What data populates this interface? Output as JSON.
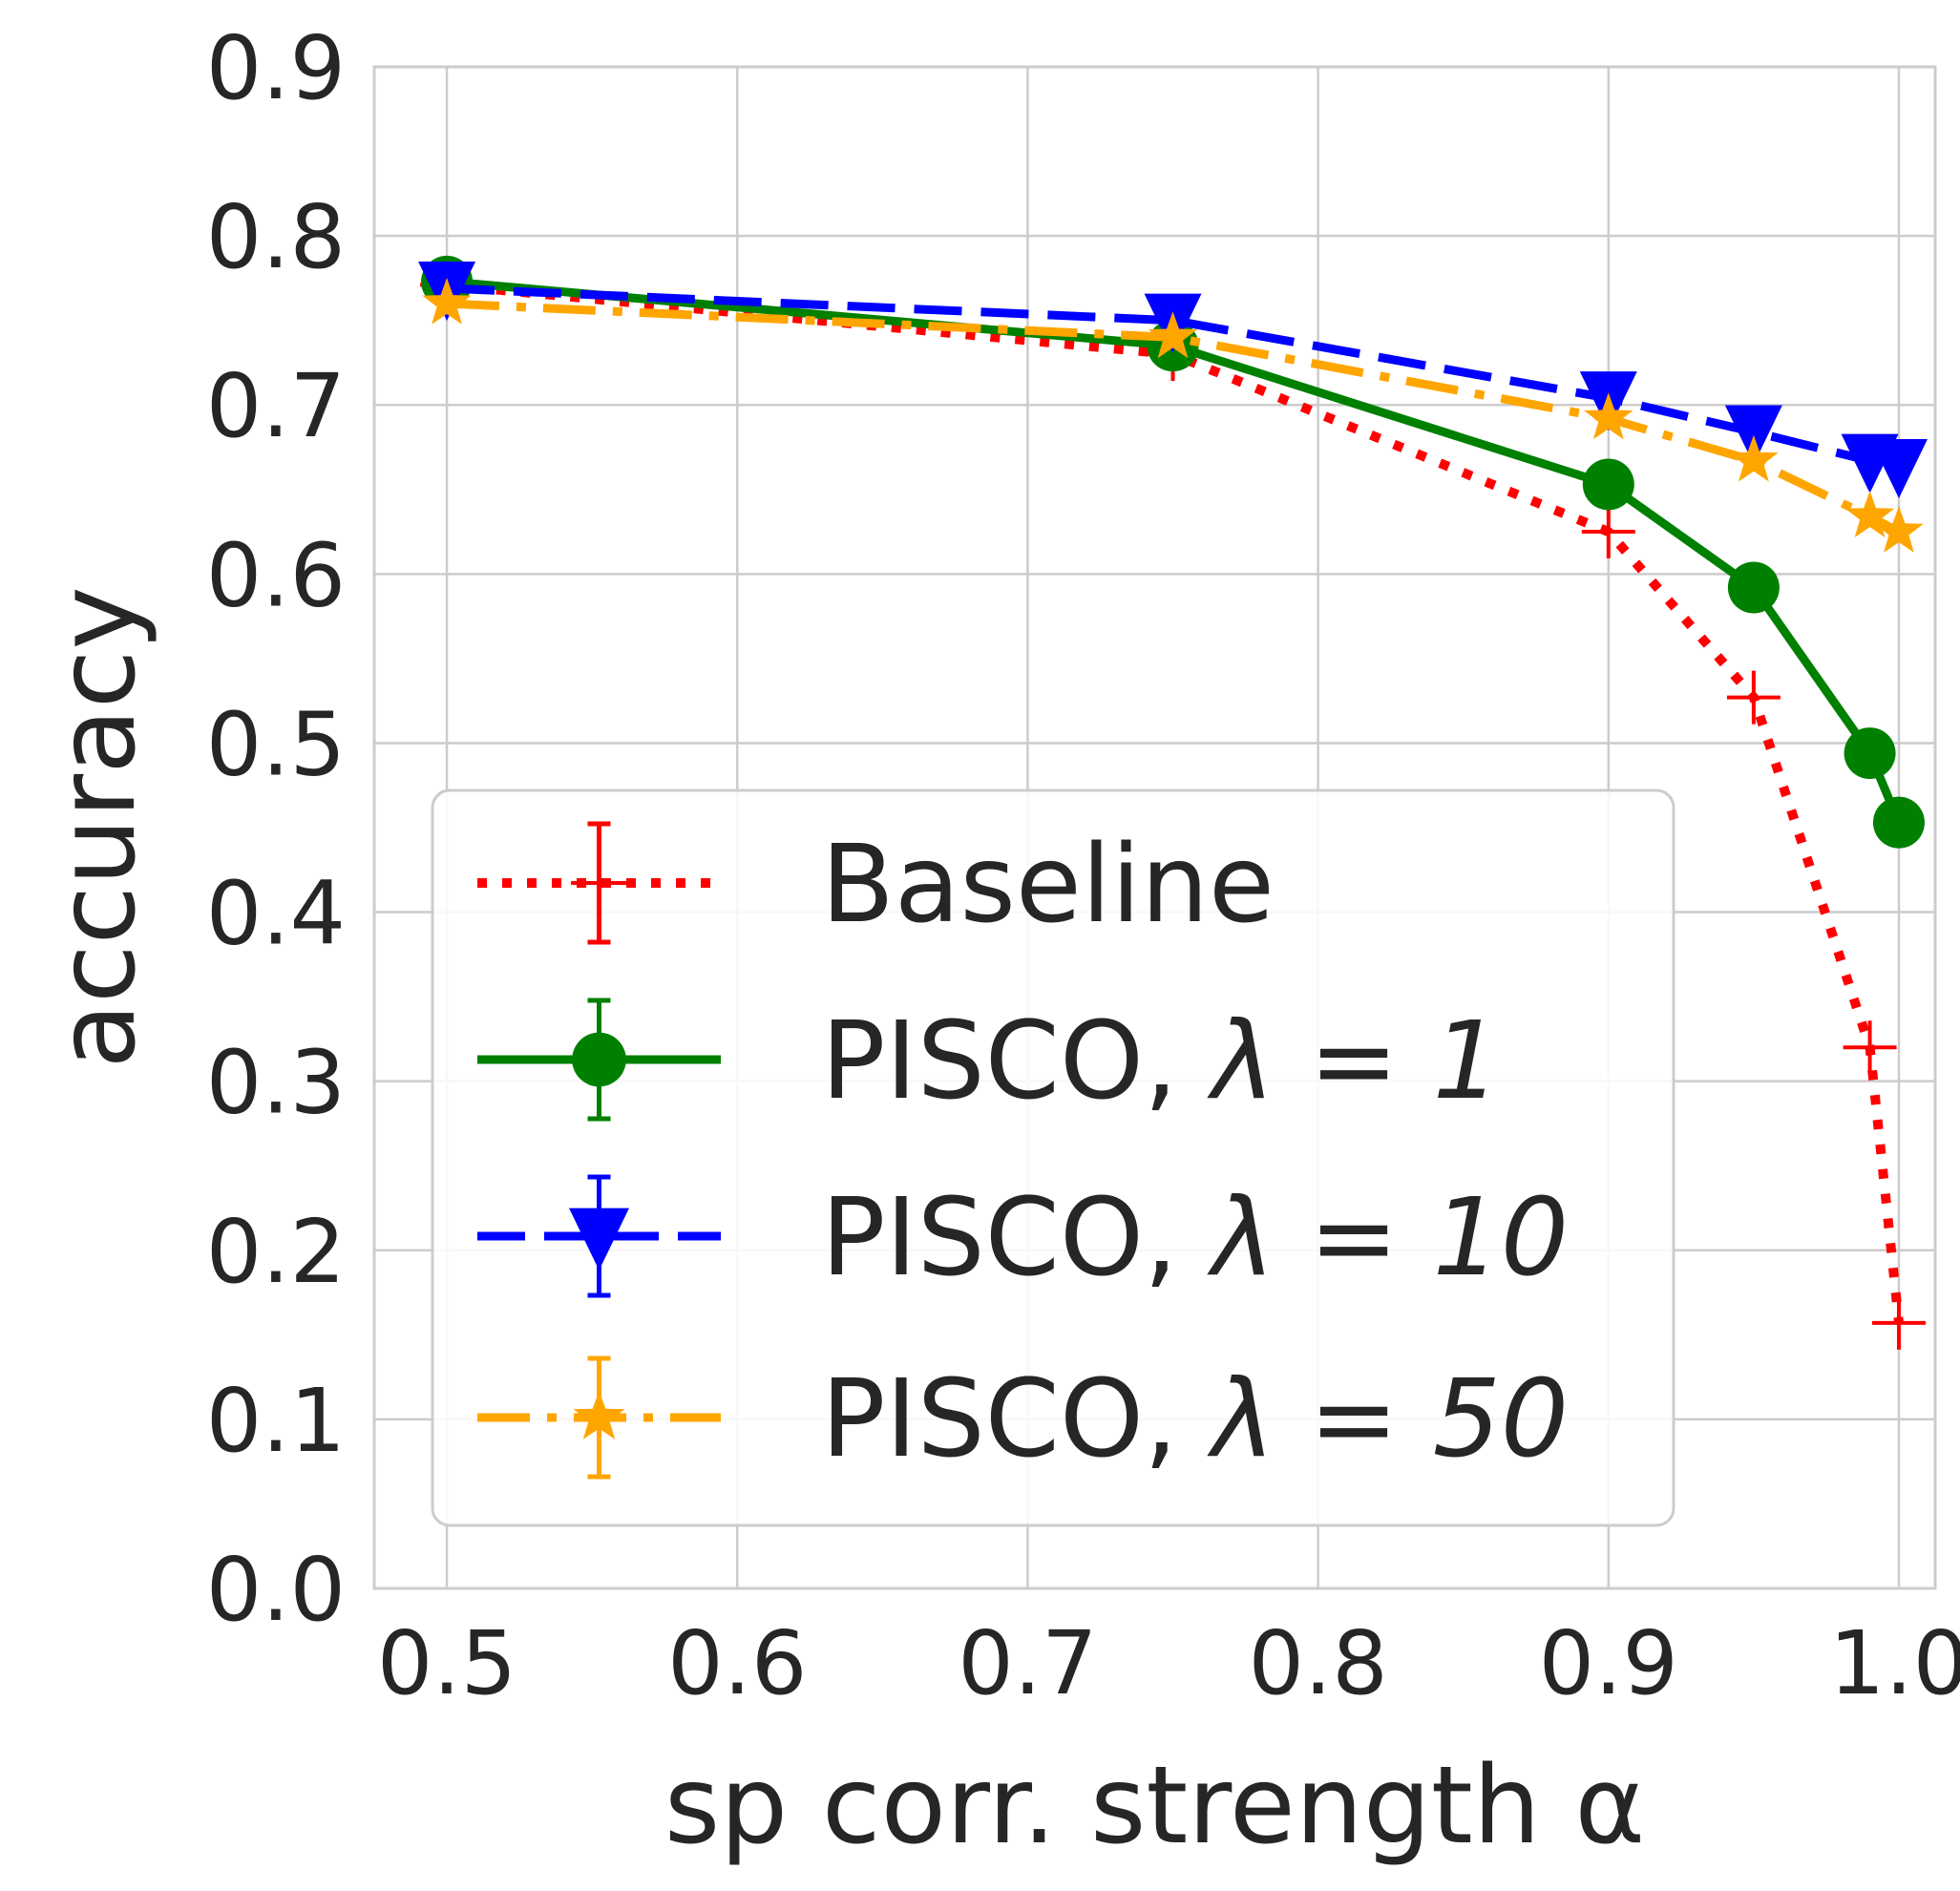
{
  "chart_data": {
    "type": "line",
    "title": "",
    "xlabel": "sp corr. strength α",
    "ylabel": "accuracy",
    "xlim": [
      0.475,
      1.0125
    ],
    "ylim": [
      0.0,
      0.9
    ],
    "xticks": [
      0.5,
      0.6,
      0.7,
      0.8,
      0.9,
      1.0
    ],
    "xtick_labels": [
      "0.5",
      "0.6",
      "0.7",
      "0.8",
      "0.9",
      "1.0"
    ],
    "yticks": [
      0.0,
      0.1,
      0.2,
      0.3,
      0.4,
      0.5,
      0.6,
      0.7,
      0.8,
      0.9
    ],
    "ytick_labels": [
      "0.0",
      "0.1",
      "0.2",
      "0.3",
      "0.4",
      "0.5",
      "0.6",
      "0.7",
      "0.8",
      "0.9"
    ],
    "grid": true,
    "legend_position": "lower-center",
    "x": [
      0.5,
      0.75,
      0.9,
      0.95,
      0.99,
      1.0
    ],
    "series": [
      {
        "name": "Baseline",
        "name_prefix": "Baseline",
        "name_math": "",
        "values": [
          0.771,
          0.73,
          0.625,
          0.527,
          0.32,
          0.157
        ],
        "color": "#ff0000",
        "linestyle": "dotted",
        "marker": "plus"
      },
      {
        "name": "PISCO, λ = 1",
        "name_prefix": "PISCO, ",
        "name_math": "λ = 1",
        "values": [
          0.773,
          0.735,
          0.653,
          0.592,
          0.494,
          0.453
        ],
        "color": "#008000",
        "linestyle": "solid",
        "marker": "circle"
      },
      {
        "name": "PISCO, λ = 10",
        "name_prefix": "PISCO, ",
        "name_math": "λ = 10",
        "values": [
          0.769,
          0.75,
          0.704,
          0.684,
          0.667,
          0.664
        ],
        "color": "#0000ff",
        "linestyle": "dashed",
        "marker": "triangle-down"
      },
      {
        "name": "PISCO, λ = 50",
        "name_prefix": "PISCO, ",
        "name_math": "λ = 50",
        "values": [
          0.76,
          0.74,
          0.692,
          0.667,
          0.634,
          0.625
        ],
        "color": "#ffa500",
        "linestyle": "dashdot",
        "marker": "star"
      }
    ]
  }
}
